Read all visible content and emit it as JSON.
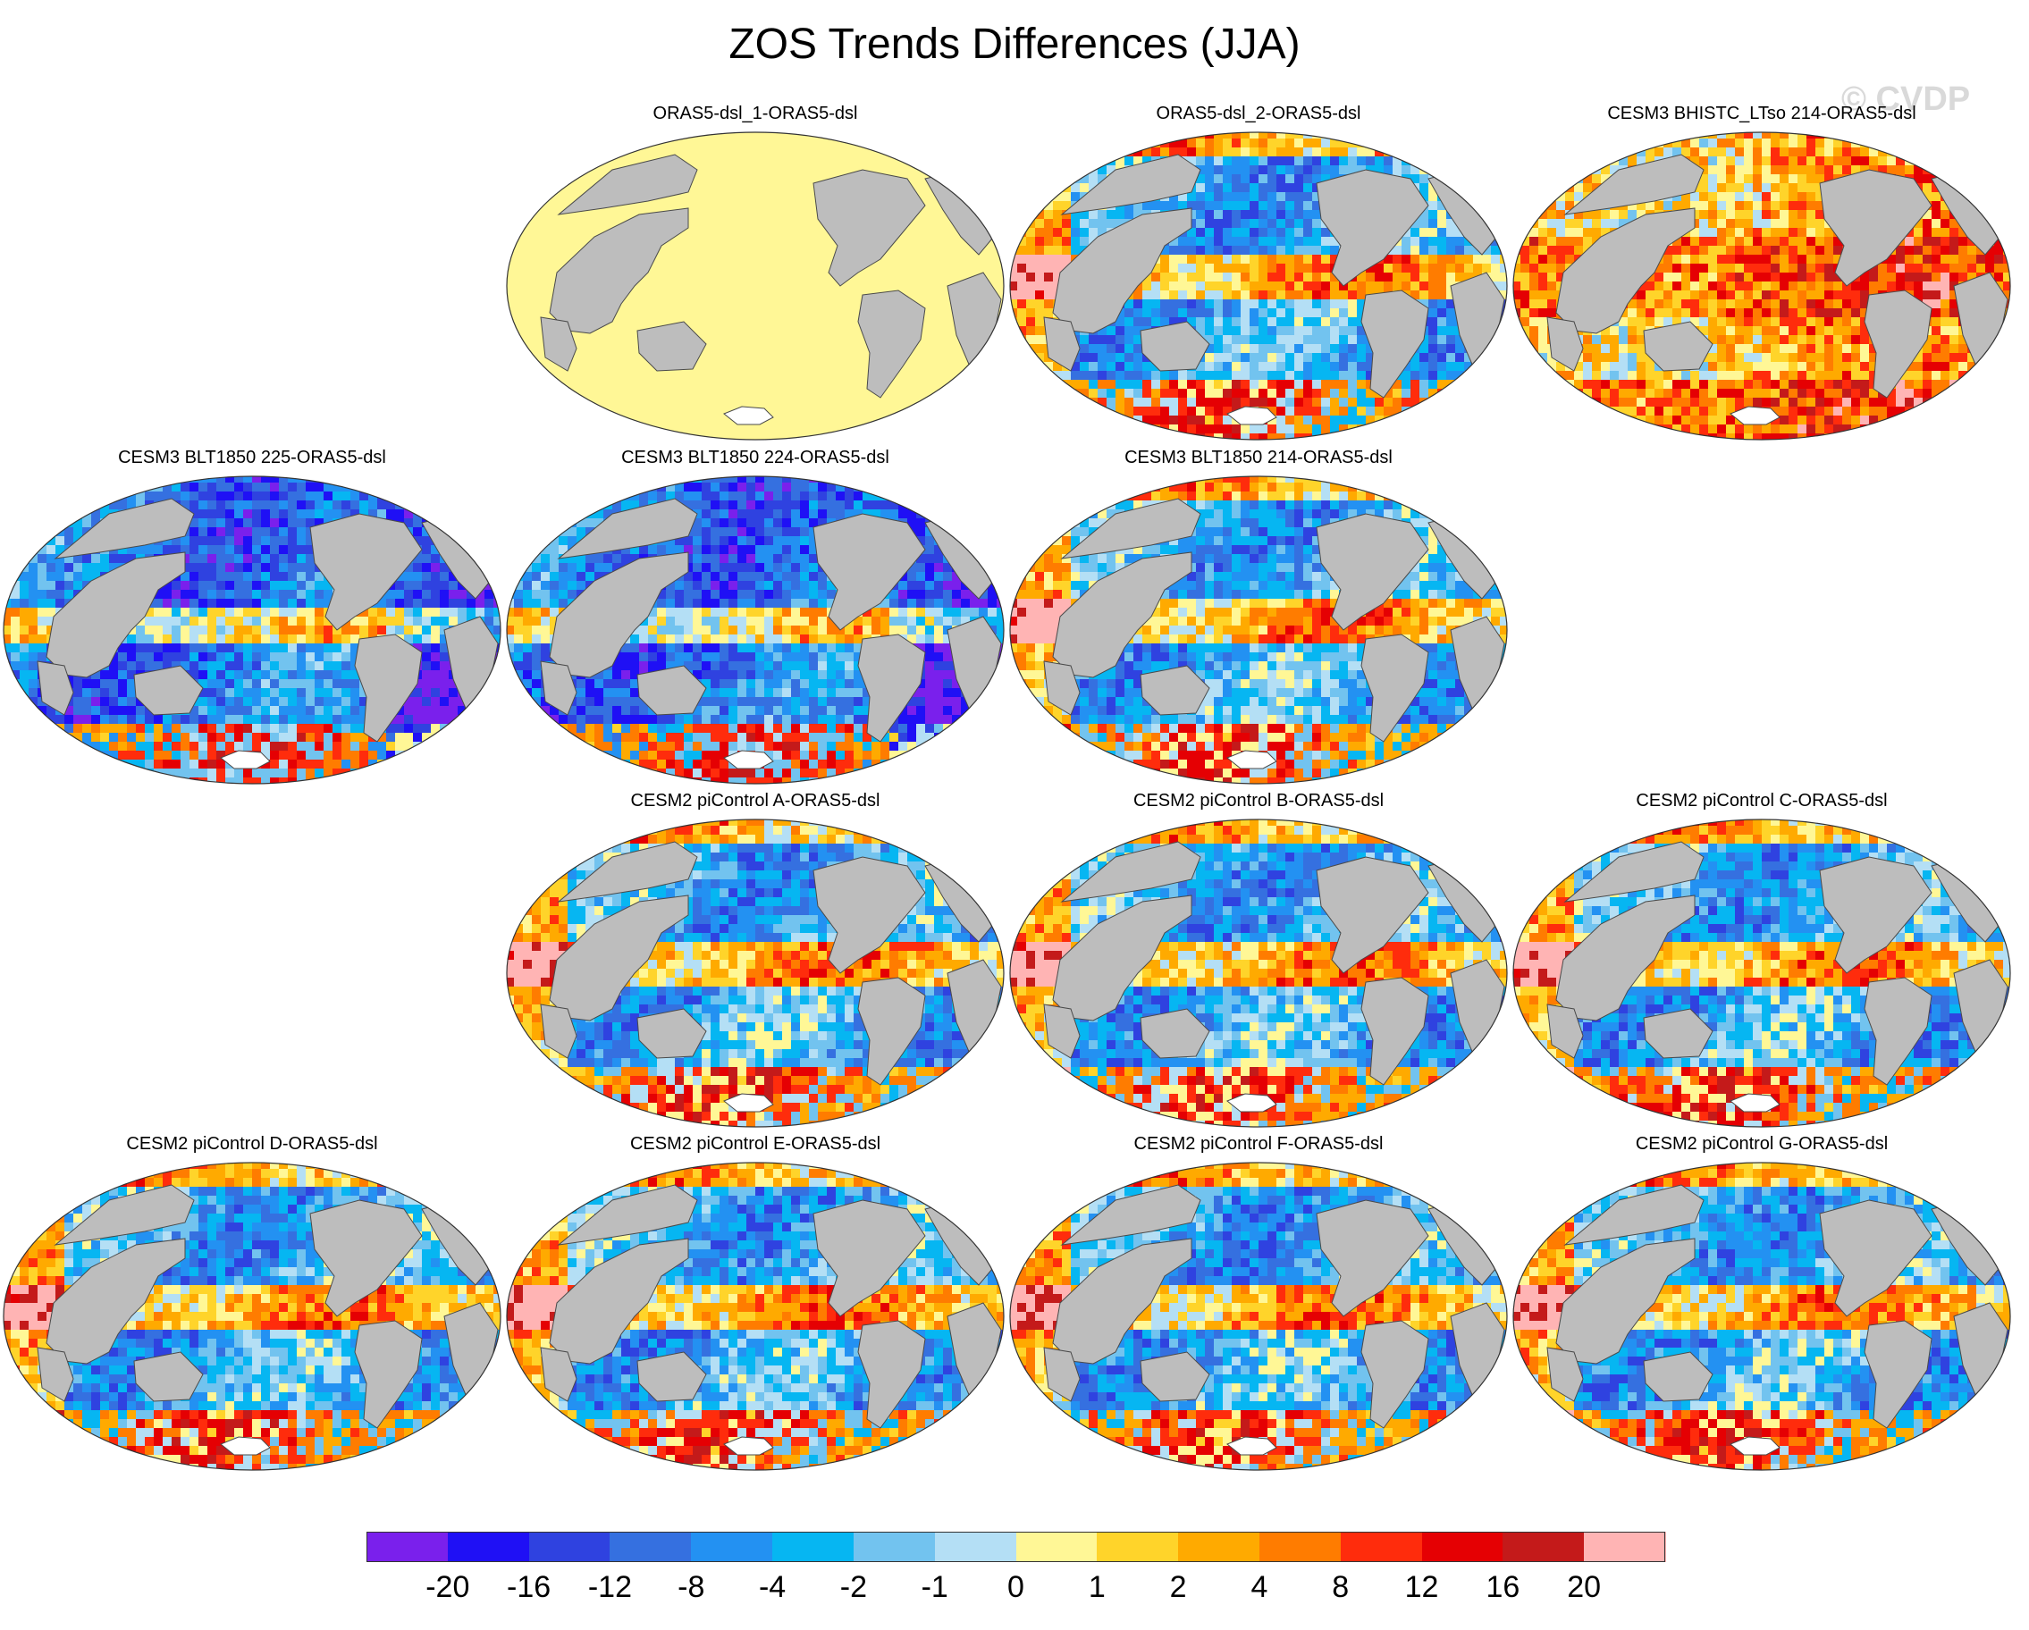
{
  "title": "ZOS Trends Differences (JJA)",
  "watermark": "© CVDP",
  "panels": [
    {
      "title": "ORAS5-dsl_1-ORAS5-dsl",
      "col": 1,
      "row": 0,
      "style": "uniform"
    },
    {
      "title": "ORAS5-dsl_2-ORAS5-dsl",
      "col": 2,
      "row": 0,
      "style": "mixed"
    },
    {
      "title": "CESM3 BHISTC_LTso 214-ORAS5-dsl",
      "col": 3,
      "row": 0,
      "style": "warm"
    },
    {
      "title": "CESM3 BLT1850 225-ORAS5-dsl",
      "col": 0,
      "row": 1,
      "style": "cold"
    },
    {
      "title": "CESM3 BLT1850 224-ORAS5-dsl",
      "col": 1,
      "row": 1,
      "style": "cold"
    },
    {
      "title": "CESM3 BLT1850 214-ORAS5-dsl",
      "col": 2,
      "row": 1,
      "style": "mixed"
    },
    {
      "title": "CESM2 piControl A-ORAS5-dsl",
      "col": 1,
      "row": 2,
      "style": "mixed"
    },
    {
      "title": "CESM2 piControl B-ORAS5-dsl",
      "col": 2,
      "row": 2,
      "style": "mixed"
    },
    {
      "title": "CESM2 piControl C-ORAS5-dsl",
      "col": 3,
      "row": 2,
      "style": "mixed"
    },
    {
      "title": "CESM2 piControl D-ORAS5-dsl",
      "col": 0,
      "row": 3,
      "style": "mixed"
    },
    {
      "title": "CESM2 piControl E-ORAS5-dsl",
      "col": 1,
      "row": 3,
      "style": "mixed"
    },
    {
      "title": "CESM2 piControl F-ORAS5-dsl",
      "col": 2,
      "row": 3,
      "style": "mixed"
    },
    {
      "title": "CESM2 piControl G-ORAS5-dsl",
      "col": 3,
      "row": 3,
      "style": "mixed"
    }
  ],
  "colorbar": {
    "labels": [
      "-20",
      "-16",
      "-12",
      "-8",
      "-4",
      "-2",
      "-1",
      "0",
      "1",
      "2",
      "4",
      "8",
      "12",
      "16",
      "20"
    ],
    "colors": [
      "#7a20ec",
      "#1f10f5",
      "#2f42e0",
      "#3570e0",
      "#2391f2",
      "#06b6f2",
      "#72c3ef",
      "#b4dff5",
      "#fff796",
      "#ffd42a",
      "#ffaa00",
      "#ff7c00",
      "#ff2c0c",
      "#e50003",
      "#c41a1a",
      "#ffb4b4"
    ]
  },
  "colors": {
    "land": "#bdbdbd",
    "coast": "#4a4a4a",
    "antarctica": "#ffffff"
  }
}
